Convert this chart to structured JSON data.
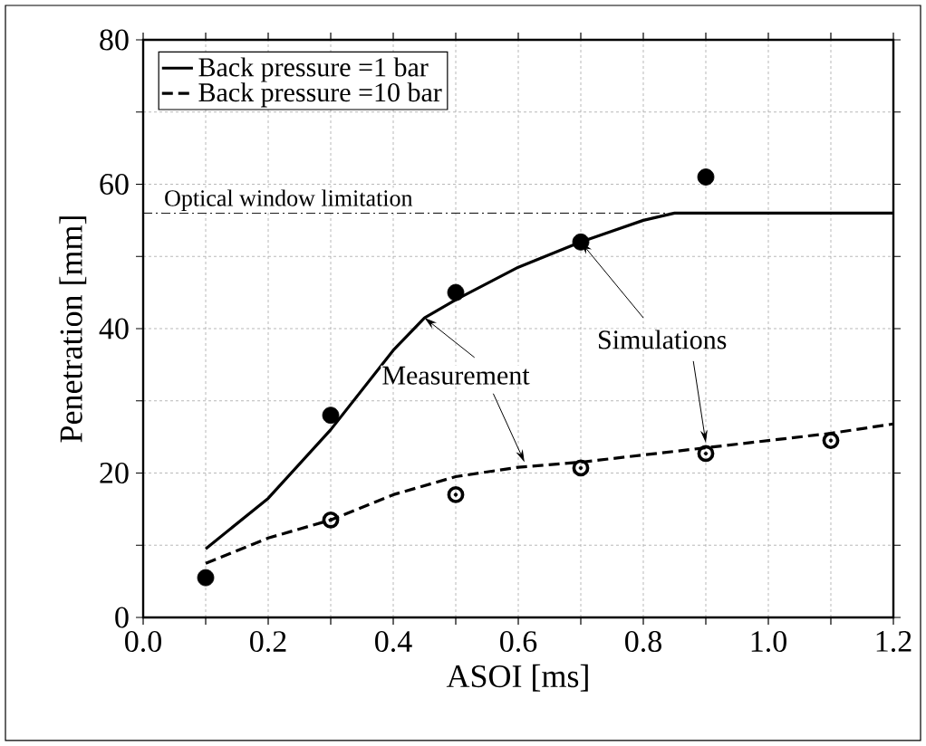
{
  "chart_data": {
    "type": "line",
    "xlabel": "ASOI [ms]",
    "ylabel": "Penetration [mm]",
    "xlim": [
      0.0,
      1.2
    ],
    "ylim": [
      0,
      80
    ],
    "xticks": [
      {
        "value": 0.0,
        "label": "0.0"
      },
      {
        "value": 0.1,
        "label": null
      },
      {
        "value": 0.2,
        "label": "0.2"
      },
      {
        "value": 0.3,
        "label": null
      },
      {
        "value": 0.4,
        "label": "0.4"
      },
      {
        "value": 0.5,
        "label": null
      },
      {
        "value": 0.6,
        "label": "0.6"
      },
      {
        "value": 0.7,
        "label": null
      },
      {
        "value": 0.8,
        "label": "0.8"
      },
      {
        "value": 0.9,
        "label": null
      },
      {
        "value": 1.0,
        "label": "1.0"
      },
      {
        "value": 1.1,
        "label": null
      },
      {
        "value": 1.2,
        "label": "1.2"
      }
    ],
    "yticks": [
      0,
      {
        "value": 10,
        "label": null
      },
      20,
      {
        "value": 30,
        "label": null
      },
      40,
      {
        "value": 50,
        "label": null
      },
      60,
      {
        "value": 70,
        "label": null
      },
      80
    ],
    "grid": true,
    "legend": "top left",
    "series": [
      {
        "name": "Back pressure =1 bar",
        "line_style": "solid",
        "color": "#000000",
        "x": [
          0.1,
          0.2,
          0.3,
          0.4,
          0.45,
          0.5,
          0.6,
          0.7,
          0.8,
          0.85,
          1.2
        ],
        "values": [
          9.5,
          16.5,
          26,
          37,
          41.5,
          44,
          48.5,
          52,
          55,
          56,
          56
        ]
      },
      {
        "name": "Back pressure =10 bar",
        "line_style": "dashed",
        "color": "#000000",
        "x": [
          0.1,
          0.2,
          0.3,
          0.4,
          0.5,
          0.6,
          0.7,
          0.8,
          0.9,
          1.0,
          1.1,
          1.2
        ],
        "values": [
          7.5,
          11,
          13.5,
          17,
          19.5,
          20.8,
          21.5,
          22.5,
          23.5,
          24.5,
          25.5,
          26.8
        ]
      },
      {
        "type": "scatter",
        "marker": "circle",
        "color": "#000000",
        "x": [
          0.1,
          0.3,
          0.5,
          0.7,
          0.9
        ],
        "values": [
          5.5,
          28,
          45,
          52,
          61
        ]
      },
      {
        "type": "scatter",
        "marker": "circle",
        "color": "#000000",
        "x": [
          0.3,
          0.5,
          0.7,
          0.9,
          1.1
        ],
        "values": [
          13.5,
          17,
          20.7,
          22.7,
          24.5
        ]
      }
    ],
    "ref_lines": [
      {
        "axis": "y",
        "value": 56,
        "label": "Optical window limitation",
        "line_style": "dashdot",
        "color": "#000000"
      }
    ],
    "annotations": [
      {
        "text": "Measurement",
        "x": 0.45,
        "y": 41.5
      },
      {
        "text": "Simulations",
        "x": 0.7,
        "y": 52
      }
    ]
  }
}
